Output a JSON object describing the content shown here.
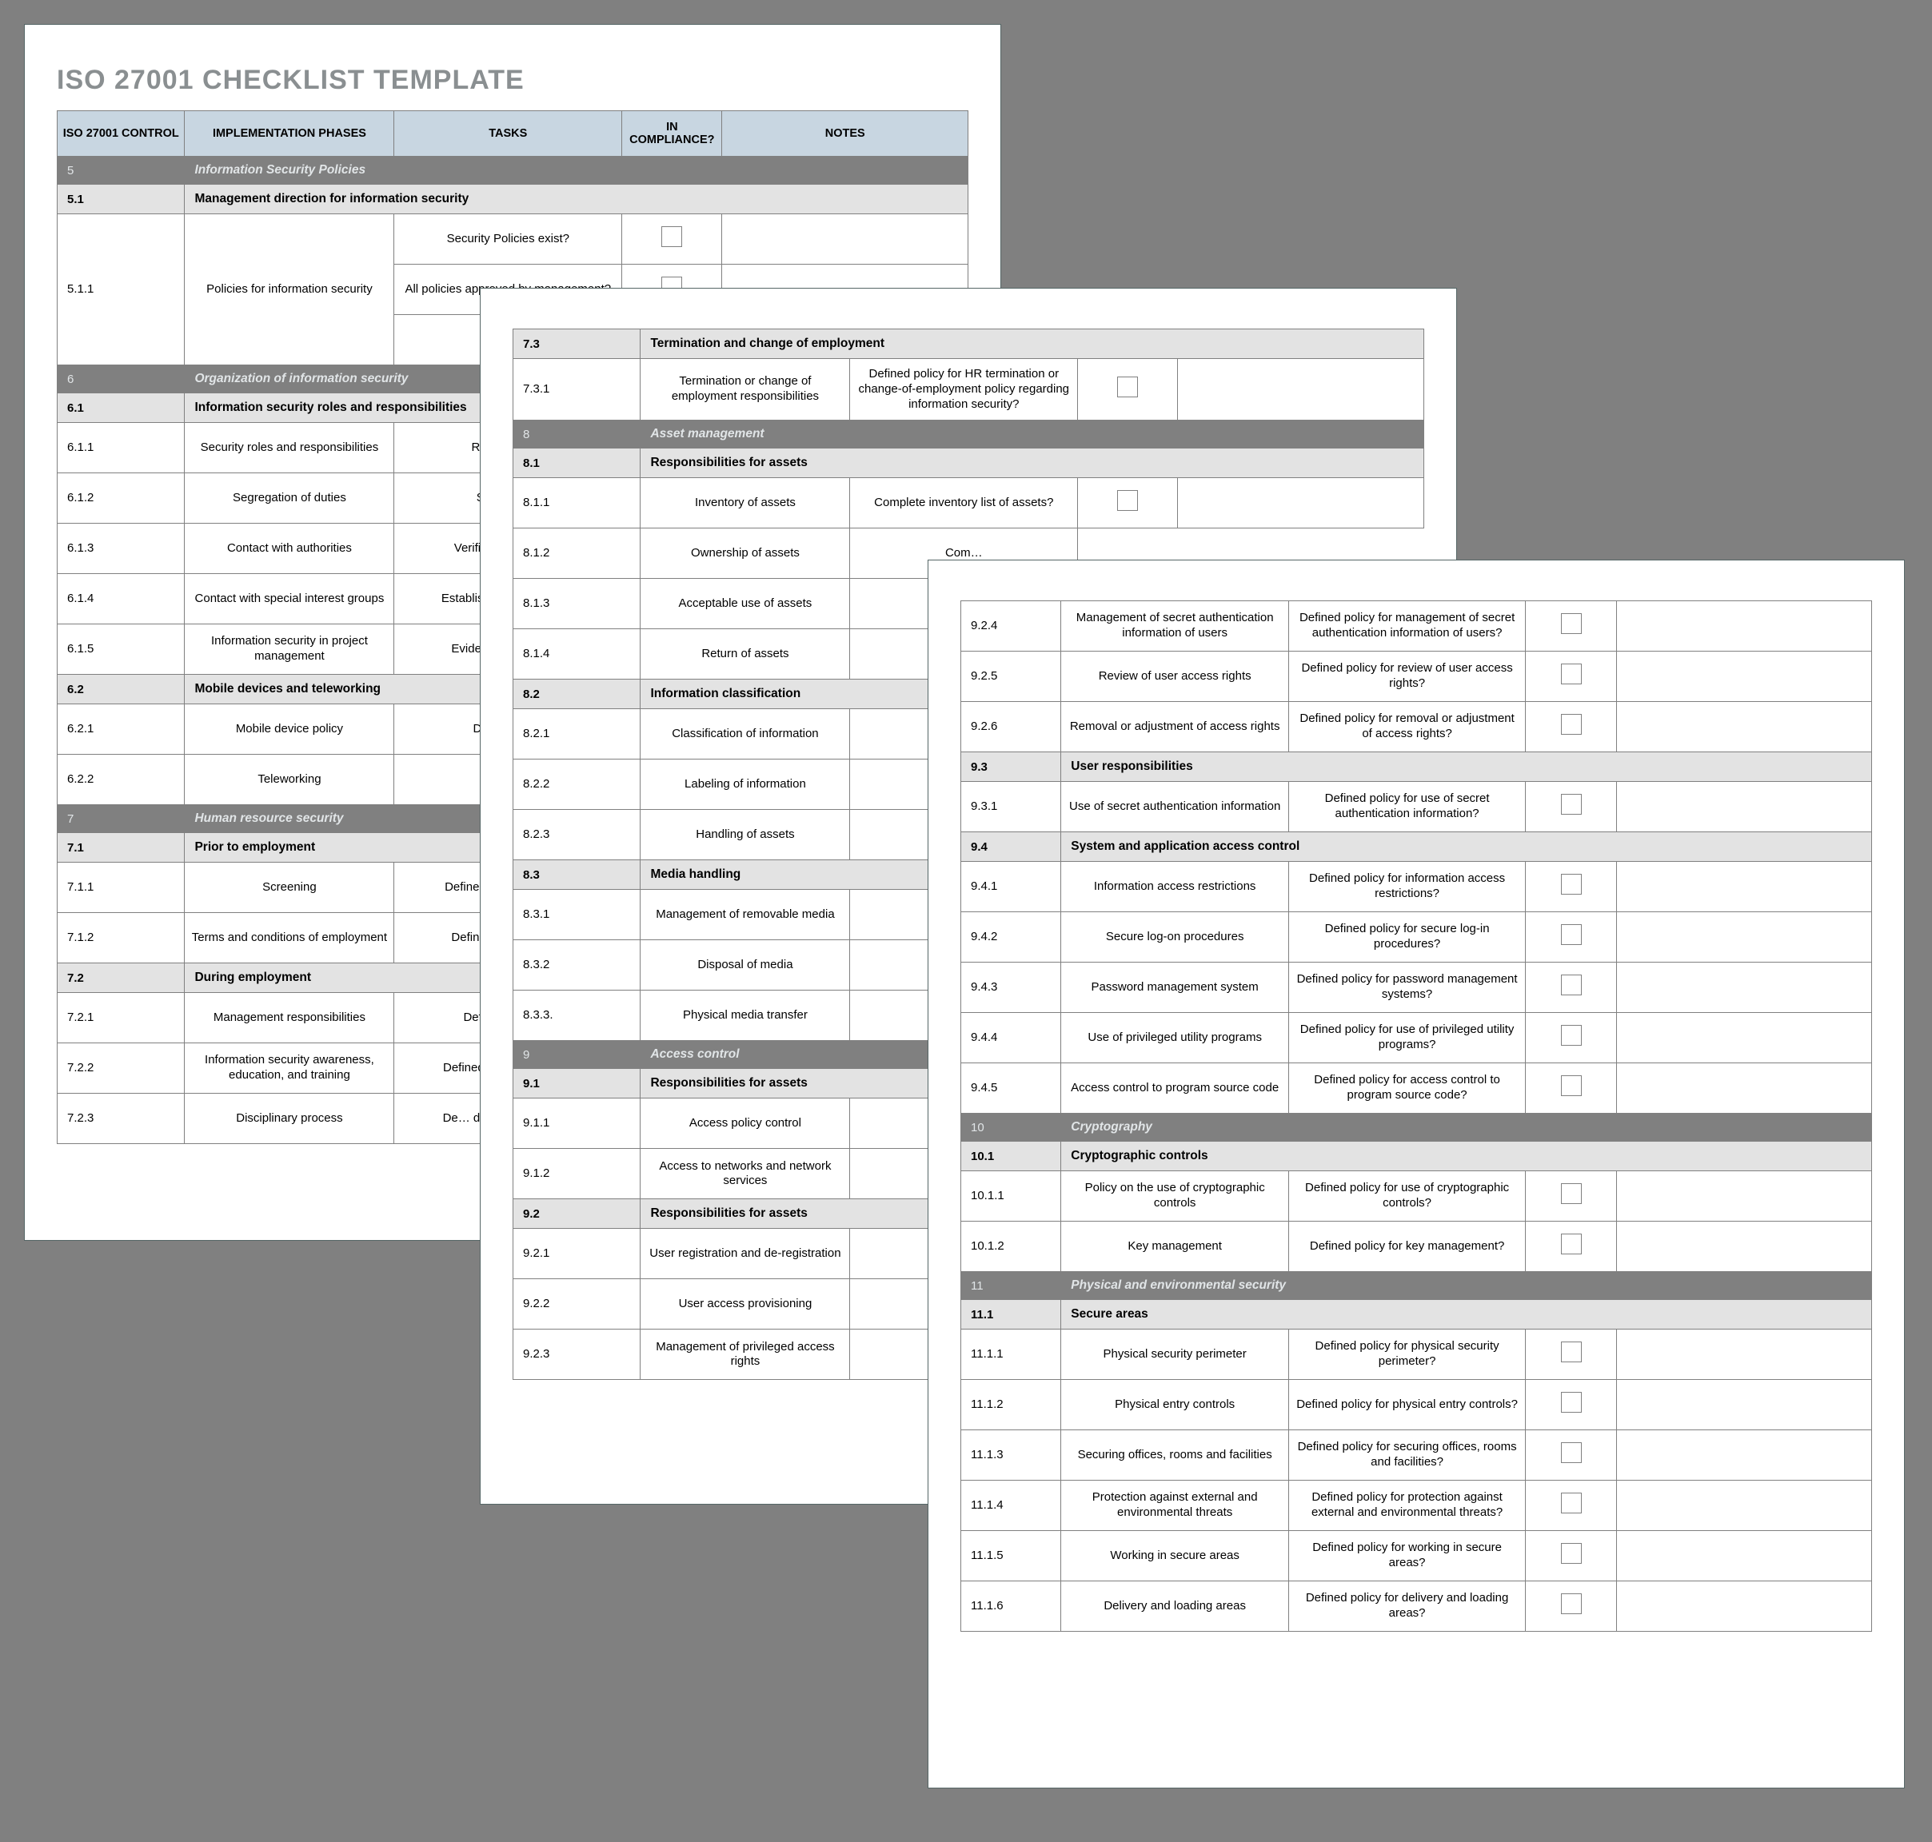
{
  "colors": {
    "page_bg": "#808080",
    "paper": "#ffffff",
    "header_bg": "#c8d6e1",
    "section_bg": "#808080",
    "section_fg": "#e1e5e7",
    "subsection_bg": "#e3e3e3",
    "border": "#808080",
    "title_fg": "#8a8f91"
  },
  "title": "ISO 27001 CHECKLIST TEMPLATE",
  "columns": [
    "ISO 27001 CONTROL",
    "IMPLEMENTATION PHASES",
    "TASKS",
    "IN COMPLIANCE?",
    "NOTES"
  ],
  "page1": [
    {
      "t": "sect",
      "num": "5",
      "title": "Information Security Policies"
    },
    {
      "t": "sub",
      "num": "5.1",
      "title": "Management direction for information security"
    },
    {
      "t": "row",
      "num": "5.1.1",
      "phase": "Policies for information security",
      "task": "Security Policies exist?",
      "cb": true,
      "rowspan": 3
    },
    {
      "t": "rowtail",
      "task": "All policies approved by management?",
      "cb": true
    },
    {
      "t": "rowtail",
      "task": "Eviden…",
      "cb": false
    },
    {
      "t": "sect",
      "num": "6",
      "title": "Organization of information security"
    },
    {
      "t": "sub",
      "num": "6.1",
      "title": "Information security roles and responsibilities"
    },
    {
      "t": "row",
      "num": "6.1.1",
      "phase": "Security roles and responsibilities",
      "task": "Roles and r…"
    },
    {
      "t": "row",
      "num": "6.1.2",
      "phase": "Segregation of duties",
      "task": "Segregati…"
    },
    {
      "t": "row",
      "num": "6.1.3",
      "phase": "Contact with authorities",
      "task": "Verificati… contac…"
    },
    {
      "t": "row",
      "num": "6.1.4",
      "phase": "Contact with special interest groups",
      "task": "Establish… interes… c…"
    },
    {
      "t": "row",
      "num": "6.1.5",
      "phase": "Information security in project management",
      "task": "Evidence o… proje…"
    },
    {
      "t": "sub",
      "num": "6.2",
      "title": "Mobile devices and teleworking"
    },
    {
      "t": "row",
      "num": "6.2.1",
      "phase": "Mobile device policy",
      "task": "Defined po…"
    },
    {
      "t": "row",
      "num": "6.2.2",
      "phase": "Teleworking",
      "task": "Defined…"
    },
    {
      "t": "sect",
      "num": "7",
      "title": "Human resource security"
    },
    {
      "t": "sub",
      "num": "7.1",
      "title": "Prior to employment"
    },
    {
      "t": "row",
      "num": "7.1.1",
      "phase": "Screening",
      "task": "Defined… employees…"
    },
    {
      "t": "row",
      "num": "7.1.2",
      "phase": "Terms and conditions of employment",
      "task": "Defined p… conditi…"
    },
    {
      "t": "sub",
      "num": "7.2",
      "title": "During employment"
    },
    {
      "t": "row",
      "num": "7.2.1",
      "phase": "Management responsibilities",
      "task": "Defined p… re…"
    },
    {
      "t": "row",
      "num": "7.2.2",
      "phase": "Information security awareness, education, and training",
      "task": "Defined p… security a…"
    },
    {
      "t": "row",
      "num": "7.2.3",
      "phase": "Disciplinary process",
      "task": "De… disciplina… infor…"
    }
  ],
  "page2": [
    {
      "t": "sub",
      "num": "7.3",
      "title": "Termination and change of employment"
    },
    {
      "t": "row",
      "num": "7.3.1",
      "phase": "Termination or change of employment responsibilities",
      "task": "Defined policy for HR termination or change-of-employment policy regarding information security?",
      "cb": true
    },
    {
      "t": "sect",
      "num": "8",
      "title": "Asset management"
    },
    {
      "t": "sub",
      "num": "8.1",
      "title": "Responsibilities for assets"
    },
    {
      "t": "row",
      "num": "8.1.1",
      "phase": "Inventory of assets",
      "task": "Complete inventory list of assets?",
      "cb": true
    },
    {
      "t": "row",
      "num": "8.1.2",
      "phase": "Ownership of assets",
      "task": "Com…"
    },
    {
      "t": "row",
      "num": "8.1.3",
      "phase": "Acceptable use of assets",
      "task": "Define…"
    },
    {
      "t": "row",
      "num": "8.1.4",
      "phase": "Return of assets",
      "task": "Def…"
    },
    {
      "t": "sub",
      "num": "8.2",
      "title": "Information classification"
    },
    {
      "t": "row",
      "num": "8.2.1",
      "phase": "Classification of information",
      "task": "Def…"
    },
    {
      "t": "row",
      "num": "8.2.2",
      "phase": "Labeling of information",
      "task": "D…"
    },
    {
      "t": "row",
      "num": "8.2.3",
      "phase": "Handling of assets",
      "task": "D…"
    },
    {
      "t": "sub",
      "num": "8.3",
      "title": "Media handling"
    },
    {
      "t": "row",
      "num": "8.3.1",
      "phase": "Management of removable media",
      "task": "Defi…"
    },
    {
      "t": "row",
      "num": "8.3.2",
      "phase": "Disposal of media",
      "task": "D…"
    },
    {
      "t": "row",
      "num": "8.3.3.",
      "phase": "Physical media transfer",
      "task": "D…"
    },
    {
      "t": "sect",
      "num": "9",
      "title": "Access control"
    },
    {
      "t": "sub",
      "num": "9.1",
      "title": "Responsibilities for assets"
    },
    {
      "t": "row",
      "num": "9.1.1",
      "phase": "Access policy control",
      "task": "D…"
    },
    {
      "t": "row",
      "num": "9.1.2",
      "phase": "Access to networks and network services",
      "task": "De… netw…"
    },
    {
      "t": "sub",
      "num": "9.2",
      "title": "Responsibilities for assets"
    },
    {
      "t": "row",
      "num": "9.2.1",
      "phase": "User registration and de-registration",
      "task": "De… regist…"
    },
    {
      "t": "row",
      "num": "9.2.2",
      "phase": "User access provisioning",
      "task": "De…"
    },
    {
      "t": "row",
      "num": "9.2.3",
      "phase": "Management of privileged access rights",
      "task": "Defi…"
    }
  ],
  "page3": [
    {
      "t": "row",
      "num": "9.2.4",
      "phase": "Management of secret authentication information of users",
      "task": "Defined policy for management of secret authentication information of users?",
      "cb": true
    },
    {
      "t": "row",
      "num": "9.2.5",
      "phase": "Review of user access rights",
      "task": "Defined policy for review of user access rights?",
      "cb": true
    },
    {
      "t": "row",
      "num": "9.2.6",
      "phase": "Removal or adjustment of access rights",
      "task": "Defined policy for removal or adjustment of access rights?",
      "cb": true
    },
    {
      "t": "sub",
      "num": "9.3",
      "title": "User responsibilities"
    },
    {
      "t": "row",
      "num": "9.3.1",
      "phase": "Use of secret authentication information",
      "task": "Defined policy for use of secret authentication information?",
      "cb": true
    },
    {
      "t": "sub",
      "num": "9.4",
      "title": "System and application access control"
    },
    {
      "t": "row",
      "num": "9.4.1",
      "phase": "Information access restrictions",
      "task": "Defined policy for information access restrictions?",
      "cb": true
    },
    {
      "t": "row",
      "num": "9.4.2",
      "phase": "Secure log-on procedures",
      "task": "Defined policy for secure log-in procedures?",
      "cb": true
    },
    {
      "t": "row",
      "num": "9.4.3",
      "phase": "Password management system",
      "task": "Defined policy for password management systems?",
      "cb": true
    },
    {
      "t": "row",
      "num": "9.4.4",
      "phase": "Use of privileged utility programs",
      "task": "Defined policy for use of privileged utility programs?",
      "cb": true
    },
    {
      "t": "row",
      "num": "9.4.5",
      "phase": "Access control to program source code",
      "task": "Defined policy for access control to program source code?",
      "cb": true
    },
    {
      "t": "sect",
      "num": "10",
      "title": "Cryptography"
    },
    {
      "t": "sub",
      "num": "10.1",
      "title": "Cryptographic controls"
    },
    {
      "t": "row",
      "num": "10.1.1",
      "phase": "Policy on the use of cryptographic controls",
      "task": "Defined policy for use of cryptographic controls?",
      "cb": true
    },
    {
      "t": "row",
      "num": "10.1.2",
      "phase": "Key management",
      "task": "Defined policy for key management?",
      "cb": true
    },
    {
      "t": "sect",
      "num": "11",
      "title": "Physical and environmental security"
    },
    {
      "t": "sub",
      "num": "11.1",
      "title": "Secure areas"
    },
    {
      "t": "row",
      "num": "11.1.1",
      "phase": "Physical security perimeter",
      "task": "Defined policy for physical security perimeter?",
      "cb": true
    },
    {
      "t": "row",
      "num": "11.1.2",
      "phase": "Physical entry controls",
      "task": "Defined policy for physical entry controls?",
      "cb": true
    },
    {
      "t": "row",
      "num": "11.1.3",
      "phase": "Securing offices, rooms and facilities",
      "task": "Defined policy for securing offices, rooms and facilities?",
      "cb": true
    },
    {
      "t": "row",
      "num": "11.1.4",
      "phase": "Protection against external and environmental threats",
      "task": "Defined policy for protection against external and environmental threats?",
      "cb": true
    },
    {
      "t": "row",
      "num": "11.1.5",
      "phase": "Working in secure areas",
      "task": "Defined policy for working in secure areas?",
      "cb": true
    },
    {
      "t": "row",
      "num": "11.1.6",
      "phase": "Delivery and loading areas",
      "task": "Defined policy for delivery and loading areas?",
      "cb": true
    }
  ]
}
